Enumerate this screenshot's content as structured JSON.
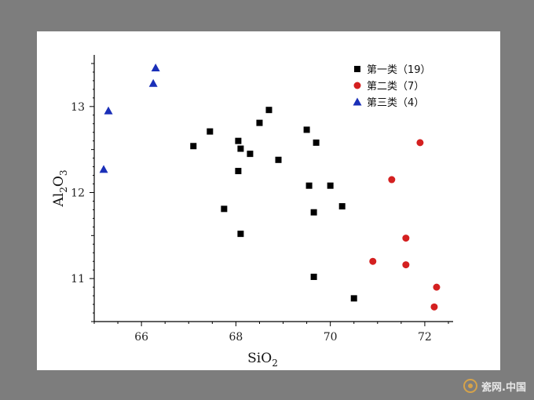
{
  "chart_data": {
    "type": "scatter",
    "xlabel": "SiO",
    "xlabel_sub": "2",
    "ylabel_parts": [
      "Al",
      "2",
      "O",
      "3"
    ],
    "xlim": [
      65,
      72.6
    ],
    "ylim": [
      10.5,
      13.6
    ],
    "xticks": [
      66,
      68,
      70,
      72
    ],
    "yticks": [
      11,
      12,
      13
    ],
    "legend_position": "top-right",
    "series": [
      {
        "name": "第一类（19）",
        "marker": "square",
        "color": "#000000",
        "points": [
          [
            67.1,
            12.54
          ],
          [
            67.45,
            12.71
          ],
          [
            67.75,
            11.81
          ],
          [
            68.05,
            12.6
          ],
          [
            68.1,
            12.51
          ],
          [
            68.05,
            12.25
          ],
          [
            68.3,
            12.45
          ],
          [
            68.5,
            12.81
          ],
          [
            68.7,
            12.96
          ],
          [
            68.9,
            12.38
          ],
          [
            68.1,
            11.52
          ],
          [
            69.5,
            12.73
          ],
          [
            69.55,
            12.08
          ],
          [
            69.7,
            12.58
          ],
          [
            69.65,
            11.77
          ],
          [
            70.0,
            12.08
          ],
          [
            70.25,
            11.84
          ],
          [
            69.65,
            11.02
          ],
          [
            70.5,
            10.77
          ]
        ]
      },
      {
        "name": "第二类（7）",
        "marker": "circle",
        "color": "#d42020",
        "points": [
          [
            71.9,
            12.58
          ],
          [
            71.3,
            12.15
          ],
          [
            71.6,
            11.47
          ],
          [
            70.9,
            11.2
          ],
          [
            71.6,
            11.16
          ],
          [
            72.25,
            10.9
          ],
          [
            72.2,
            10.67
          ]
        ]
      },
      {
        "name": "第三类（4）",
        "marker": "triangle",
        "color": "#1a2fb8",
        "points": [
          [
            66.3,
            13.45
          ],
          [
            66.25,
            13.27
          ],
          [
            65.3,
            12.95
          ],
          [
            65.2,
            12.27
          ]
        ]
      }
    ]
  },
  "watermark": {
    "text": "瓷网.中国"
  }
}
